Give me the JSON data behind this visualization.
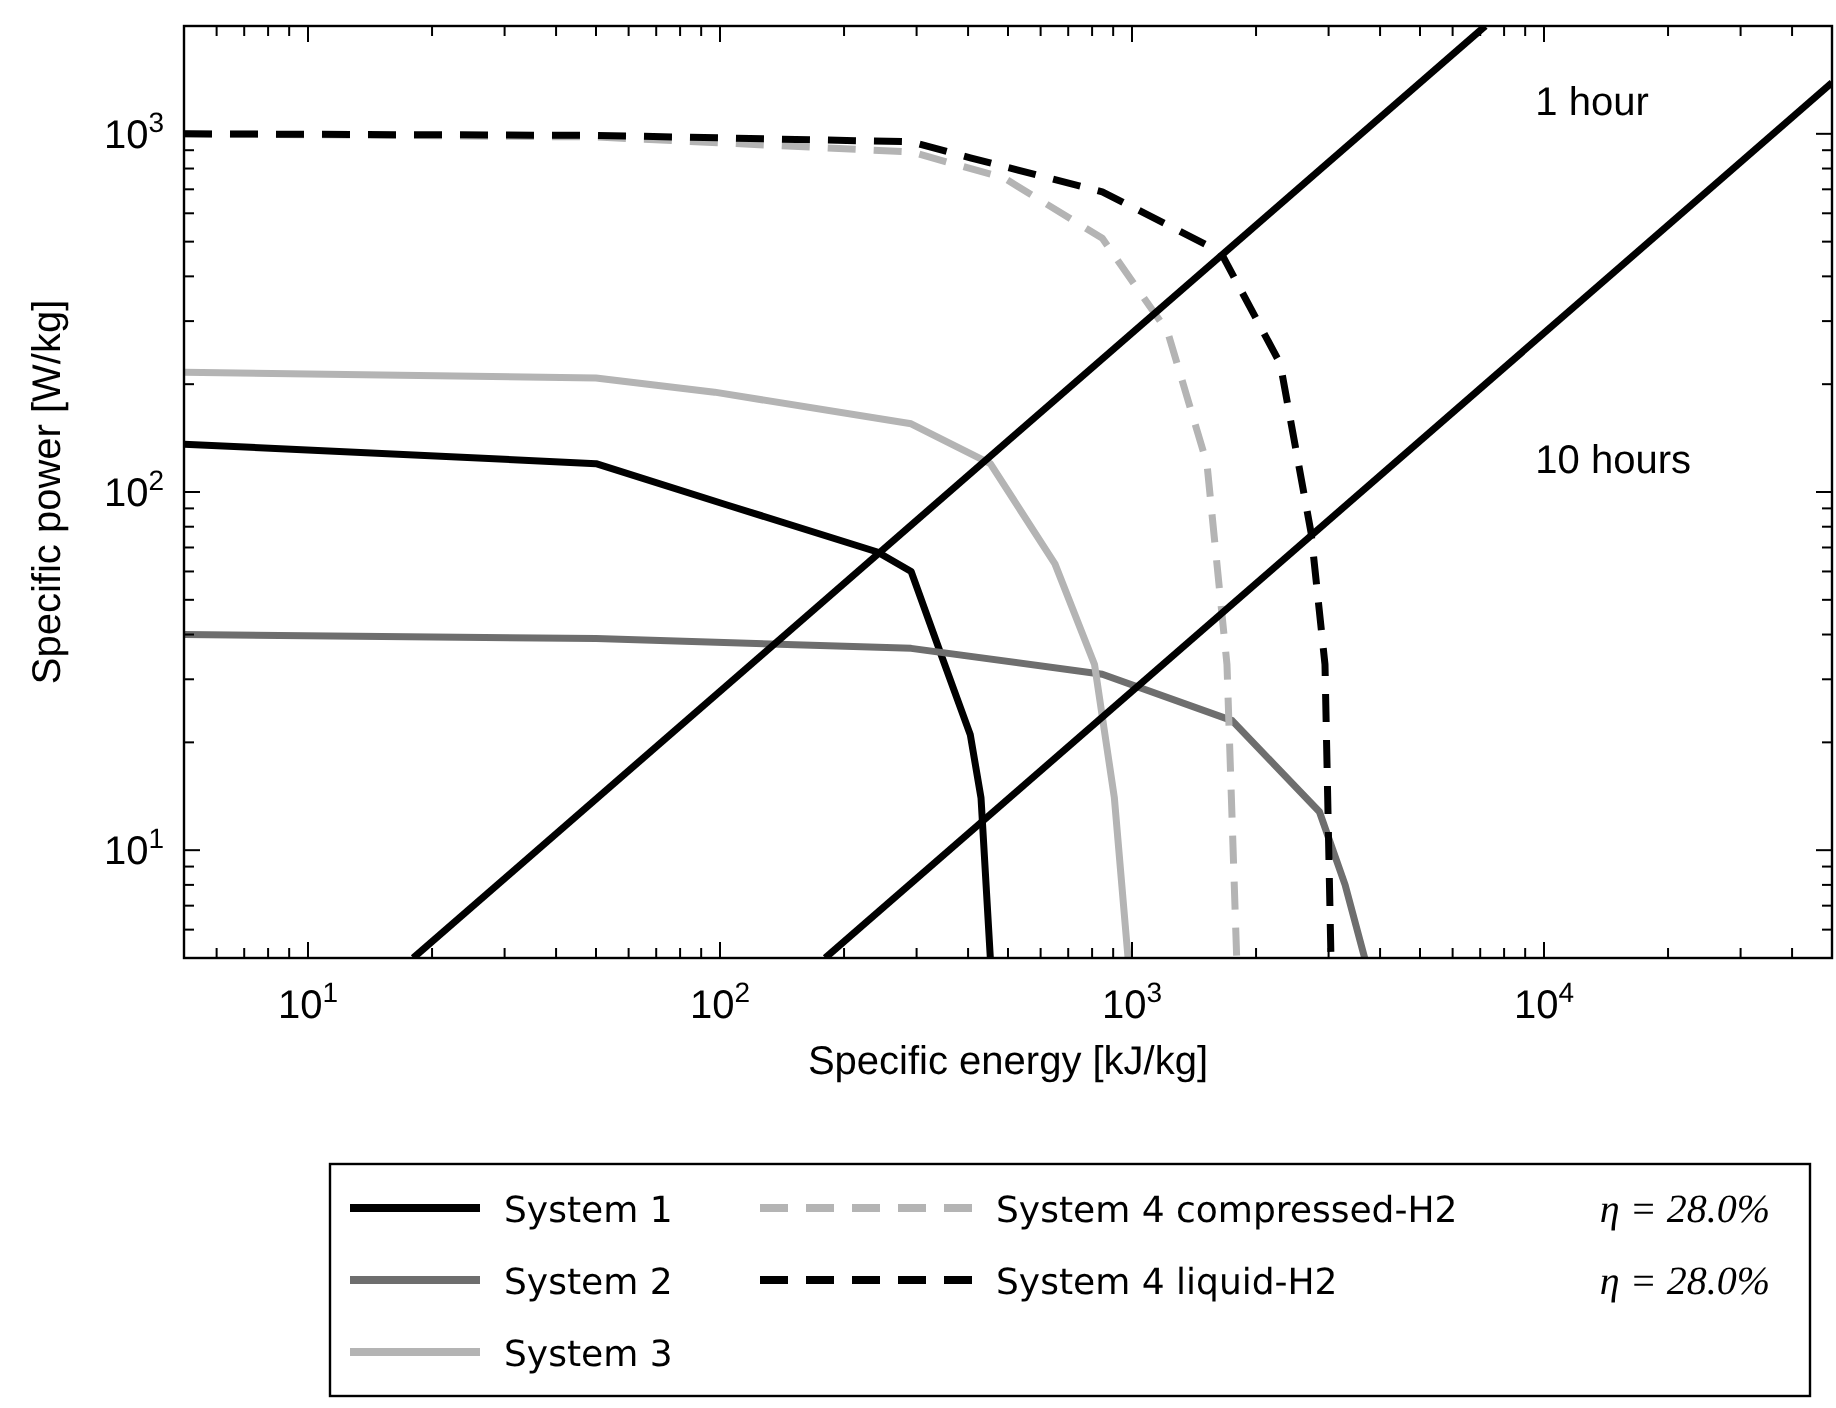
{
  "chart_data": {
    "type": "line",
    "xlabel": "Specific energy [kJ/kg]",
    "ylabel": "Specific power [W/kg]",
    "log": "xy",
    "grid": false,
    "legend": "bottom",
    "line_style": "solid",
    "marker": "none",
    "xlim": [
      5,
      50000
    ],
    "ylim": [
      5,
      2000
    ],
    "xticks": [
      {
        "value": 6,
        "label": null
      },
      {
        "value": 7,
        "label": null
      },
      {
        "value": 8,
        "label": null
      },
      {
        "value": 9,
        "label": null
      },
      {
        "value": 10,
        "label": "10$^{1}$"
      },
      {
        "value": 20,
        "label": null
      },
      {
        "value": 30,
        "label": null
      },
      {
        "value": 40,
        "label": null
      },
      {
        "value": 50,
        "label": null
      },
      {
        "value": 60,
        "label": null
      },
      {
        "value": 70,
        "label": null
      },
      {
        "value": 80,
        "label": null
      },
      {
        "value": 90,
        "label": null
      },
      {
        "value": 100,
        "label": "10$^{2}$"
      },
      {
        "value": 200,
        "label": null
      },
      {
        "value": 300,
        "label": null
      },
      {
        "value": 400,
        "label": null
      },
      {
        "value": 500,
        "label": null
      },
      {
        "value": 600,
        "label": null
      },
      {
        "value": 700,
        "label": null
      },
      {
        "value": 800,
        "label": null
      },
      {
        "value": 900,
        "label": null
      },
      {
        "value": 1000,
        "label": "10$^{3}$"
      },
      {
        "value": 2000,
        "label": null
      },
      {
        "value": 3000,
        "label": null
      },
      {
        "value": 4000,
        "label": null
      },
      {
        "value": 5000,
        "label": null
      },
      {
        "value": 6000,
        "label": null
      },
      {
        "value": 7000,
        "label": null
      },
      {
        "value": 8000,
        "label": null
      },
      {
        "value": 9000,
        "label": null
      },
      {
        "value": 10000,
        "label": "10$^{4}$"
      },
      {
        "value": 20000,
        "label": null
      },
      {
        "value": 30000,
        "label": null
      },
      {
        "value": 40000,
        "label": null
      }
    ],
    "yticks": [
      {
        "value": 6,
        "label": null
      },
      {
        "value": 7,
        "label": null
      },
      {
        "value": 8,
        "label": null
      },
      {
        "value": 9,
        "label": null
      },
      {
        "value": 10,
        "label": "10$^{1}$"
      },
      {
        "value": 20,
        "label": null
      },
      {
        "value": 30,
        "label": null
      },
      {
        "value": 40,
        "label": null
      },
      {
        "value": 50,
        "label": null
      },
      {
        "value": 60,
        "label": null
      },
      {
        "value": 70,
        "label": null
      },
      {
        "value": 80,
        "label": null
      },
      {
        "value": 90,
        "label": null
      },
      {
        "value": 100,
        "label": "10$^{2}$"
      },
      {
        "value": 200,
        "label": null
      },
      {
        "value": 300,
        "label": null
      },
      {
        "value": 400,
        "label": null
      },
      {
        "value": 500,
        "label": null
      },
      {
        "value": 600,
        "label": null
      },
      {
        "value": 700,
        "label": null
      },
      {
        "value": 800,
        "label": null
      },
      {
        "value": 900,
        "label": null
      },
      {
        "value": 1000,
        "label": "10$^{3}$"
      }
    ],
    "series": [
      {
        "name": "System 1",
        "color": "#000000",
        "x": [
          5,
          50,
          104,
          241,
          291,
          351,
          405,
          430,
          453
        ],
        "values": [
          136,
          120,
          92,
          68,
          60,
          33,
          21,
          14,
          5
        ]
      },
      {
        "name": "System 2",
        "color": "#6e6e6e",
        "x": [
          5,
          50,
          291,
          847,
          1750,
          2850,
          3290,
          3670
        ],
        "values": [
          40,
          39,
          36.6,
          31,
          23,
          12.8,
          8,
          5
        ]
      },
      {
        "name": "System 3",
        "color": "#b4b4b4",
        "x": [
          5,
          50,
          97,
          291,
          453,
          650,
          811,
          906,
          978
        ],
        "values": [
          216,
          208,
          190,
          155,
          120,
          63,
          33,
          14,
          5
        ]
      },
      {
        "name": "System 4 compressed-H2",
        "color": "#b4b4b4",
        "line_style": "dashed",
        "x": [
          5,
          50,
          291,
          489,
          847,
          1220,
          1520,
          1700,
          1795
        ],
        "values": [
          1000,
          980,
          890,
          753,
          511,
          280,
          120,
          33,
          5
        ]
      },
      {
        "name": "System 4 liquid-H2",
        "color": "#000000",
        "line_style": "dashed",
        "x": [
          5,
          50,
          291,
          405,
          847,
          1640,
          2290,
          2720,
          2940,
          3040
        ],
        "values": [
          1000,
          990,
          950,
          857,
          689,
          468,
          228,
          77,
          33,
          5
        ]
      },
      {
        "color": "#000000",
        "x": [
          18,
          7200
        ],
        "values": [
          5,
          2000
        ]
      },
      {
        "color": "#000000",
        "x": [
          180,
          50000
        ],
        "values": [
          5,
          1389
        ]
      }
    ],
    "annotations": [
      "1 hour",
      "10 hours",
      "η = 28.0%",
      "η = 28.0%"
    ]
  }
}
